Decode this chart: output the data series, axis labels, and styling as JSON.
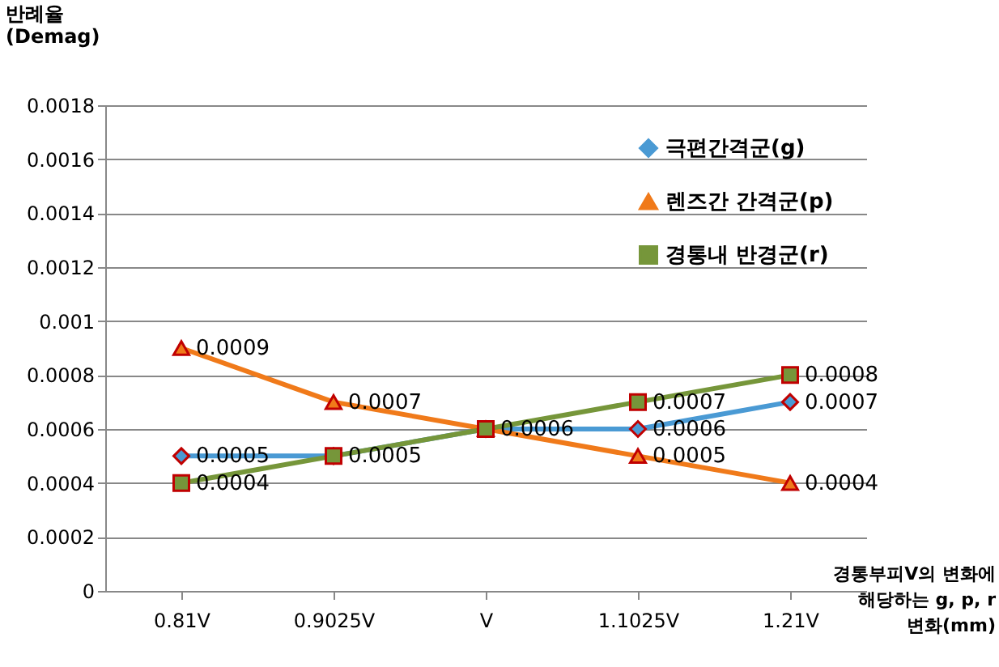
{
  "chart_data": {
    "type": "line",
    "ylabel": "반례율 (Demag)",
    "xlabel": "경통부피V의 변화에 해당하는 g, p, r 변화(mm)",
    "categories": [
      "0.81V",
      "0.9025V",
      "V",
      "1.1025V",
      "1.21V"
    ],
    "series": [
      {
        "name": "극편간격군(g)",
        "color": "#4a9ad4",
        "marker": "diamond",
        "values": [
          0.0005,
          0.0005,
          0.0006,
          0.0006,
          0.0007
        ],
        "value_labels": [
          "0.0005",
          null,
          null,
          "0.0006",
          "0.0007"
        ]
      },
      {
        "name": "렌즈간 간격군(p)",
        "color": "#f07a1a",
        "marker": "triangle",
        "values": [
          0.0009,
          0.0007,
          0.0006,
          0.0005,
          0.0004
        ],
        "value_labels": [
          "0.0009",
          "0.0007",
          null,
          "0.0005",
          "0.0004"
        ]
      },
      {
        "name": "경통내 반경군(r)",
        "color": "#76963a",
        "marker": "square",
        "values": [
          0.0004,
          0.0005,
          0.0006,
          0.0007,
          0.0008
        ],
        "value_labels": [
          "0.0004",
          "0.0005",
          "0.0006",
          "0.0007",
          "0.0008"
        ]
      }
    ],
    "ylim": [
      0,
      0.0018
    ],
    "yticks": [
      {
        "value": 0,
        "label": "0"
      },
      0.0002,
      0.0004,
      0.0006,
      0.0008,
      0.001,
      0.0012,
      0.0014,
      0.0016,
      0.0018
    ],
    "grid": "y",
    "legend": "top right",
    "line_style": "solid"
  }
}
